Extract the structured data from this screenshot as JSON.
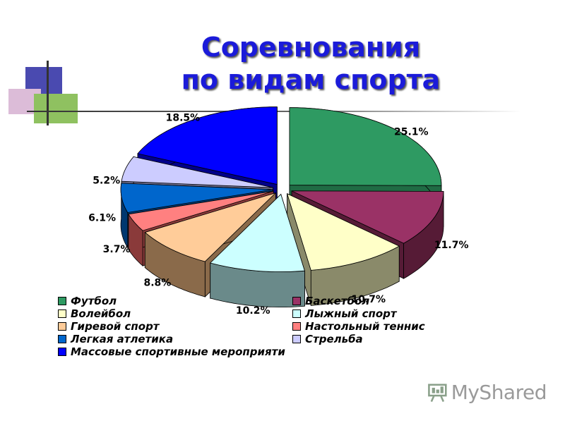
{
  "title": {
    "line1": "Соревнования",
    "line2": "по видам спорта"
  },
  "chart_data": {
    "type": "pie",
    "title": "Соревнования по видам спорта",
    "slices": [
      {
        "name": "Футбол",
        "value": 25.1,
        "label": "25.1%",
        "color": "#2e9a62",
        "side": "#206b44"
      },
      {
        "name": "Баскетбол",
        "value": 11.7,
        "label": "11.7%",
        "color": "#9a3266",
        "side": "#561b36"
      },
      {
        "name": "Волейбол",
        "value": 10.7,
        "label": "10.7%",
        "color": "#ffffc8",
        "side": "#8a8a6a"
      },
      {
        "name": "Лыжный спорт",
        "value": 10.2,
        "label": "10.2%",
        "color": "#ccffff",
        "side": "#6a8a8a"
      },
      {
        "name": "Гиревой спорт",
        "value": 8.8,
        "label": "8.8%",
        "color": "#ffcc99",
        "side": "#8a6a4a"
      },
      {
        "name": "Настольный теннис",
        "value": 3.7,
        "label": "3.7%",
        "color": "#ff8080",
        "side": "#8a3a3a"
      },
      {
        "name": "Легкая атлетика",
        "value": 6.1,
        "label": "6.1%",
        "color": "#0066cc",
        "side": "#003870"
      },
      {
        "name": "Стрельба",
        "value": 5.2,
        "label": "5.2%",
        "color": "#ccccff",
        "side": "#6a6a8a"
      },
      {
        "name": "Массовые спортивные мероприяти",
        "value": 18.5,
        "label": "18.5%",
        "color": "#0000ff",
        "side": "#00008a"
      }
    ],
    "legend_position": "bottom",
    "exploded": true,
    "style": "3d"
  },
  "logo": {
    "text": "MyShared",
    "icon": "presentation-board-icon"
  }
}
